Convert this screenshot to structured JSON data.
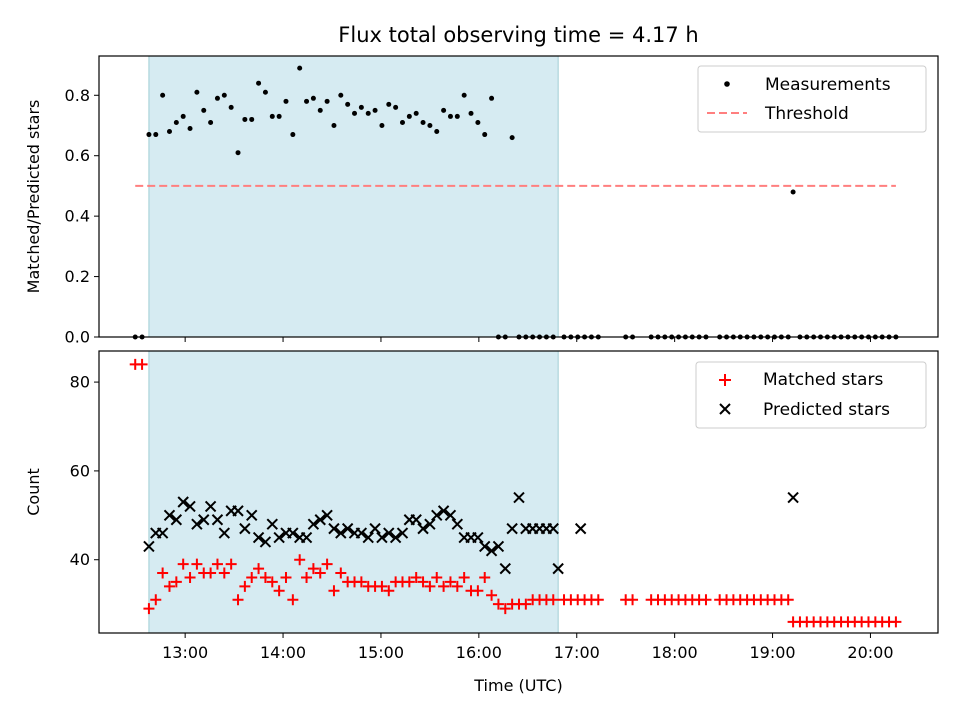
{
  "chart_data": {
    "title": "Flux total observing time = 4.17 h",
    "xlabel": "Time (UTC)",
    "x_ticks": [
      "13:00",
      "14:00",
      "15:00",
      "16:00",
      "17:00",
      "18:00",
      "19:00",
      "20:00"
    ],
    "x_tick_hours": [
      13,
      14,
      15,
      16,
      17,
      18,
      19,
      20
    ],
    "xlim": [
      "12:07",
      "20:41"
    ],
    "xlim_hours": [
      12.12,
      20.69
    ],
    "shaded_span_hours": [
      12.63,
      16.81
    ],
    "shade_color": "#add8e6",
    "panels": [
      {
        "type": "scatter",
        "ylabel": "Matched/Predicted stars",
        "ylim": [
          0,
          0.93
        ],
        "y_ticks": [
          0.0,
          0.2,
          0.4,
          0.6,
          0.8
        ],
        "y_tick_labels": [
          "0.0",
          "0.2",
          "0.4",
          "0.6",
          "0.8"
        ],
        "legend_position": "top-right",
        "series": [
          {
            "name": "Measurements",
            "marker": "dot",
            "color": "#000000",
            "x": [
              12.49,
              12.56,
              12.63,
              12.7,
              12.77,
              12.84,
              12.91,
              12.98,
              13.05,
              13.12,
              13.19,
              13.26,
              13.33,
              13.4,
              13.47,
              13.54,
              13.61,
              13.68,
              13.75,
              13.82,
              13.89,
              13.96,
              14.03,
              14.1,
              14.17,
              14.24,
              14.31,
              14.38,
              14.45,
              14.52,
              14.59,
              14.66,
              14.73,
              14.8,
              14.87,
              14.94,
              15.01,
              15.08,
              15.15,
              15.22,
              15.29,
              15.36,
              15.43,
              15.5,
              15.57,
              15.64,
              15.71,
              15.78,
              15.85,
              15.92,
              15.99,
              16.06,
              16.13,
              16.2,
              16.27,
              16.34,
              16.41,
              16.48,
              16.55,
              16.62,
              16.69,
              16.76,
              16.87,
              16.94,
              17.01,
              17.08,
              17.15,
              17.22,
              17.5,
              17.57,
              17.76,
              17.83,
              17.9,
              17.97,
              18.04,
              18.11,
              18.18,
              18.25,
              18.32,
              18.46,
              18.53,
              18.6,
              18.67,
              18.74,
              18.81,
              18.88,
              18.95,
              19.02,
              19.09,
              19.16,
              19.21,
              19.28,
              19.35,
              19.42,
              19.49,
              19.56,
              19.63,
              19.7,
              19.77,
              19.84,
              19.91,
              19.98,
              20.05,
              20.12,
              20.19,
              20.26
            ],
            "y": [
              0.0,
              0.0,
              0.67,
              0.67,
              0.8,
              0.68,
              0.71,
              0.73,
              0.69,
              0.81,
              0.75,
              0.71,
              0.79,
              0.8,
              0.76,
              0.61,
              0.72,
              0.72,
              0.84,
              0.81,
              0.73,
              0.73,
              0.78,
              0.67,
              0.89,
              0.78,
              0.79,
              0.75,
              0.78,
              0.7,
              0.8,
              0.77,
              0.74,
              0.76,
              0.74,
              0.75,
              0.7,
              0.77,
              0.76,
              0.71,
              0.73,
              0.74,
              0.71,
              0.7,
              0.68,
              0.75,
              0.73,
              0.73,
              0.8,
              0.74,
              0.71,
              0.67,
              0.79,
              0.0,
              0.0,
              0.66,
              0.0,
              0.0,
              0.0,
              0.0,
              0.0,
              0.0,
              0.0,
              0.0,
              0.0,
              0.0,
              0.0,
              0.0,
              0.0,
              0.0,
              0.0,
              0.0,
              0.0,
              0.0,
              0.0,
              0.0,
              0.0,
              0.0,
              0.0,
              0.0,
              0.0,
              0.0,
              0.0,
              0.0,
              0.0,
              0.0,
              0.0,
              0.0,
              0.0,
              0.0,
              0.48,
              0.0,
              0.0,
              0.0,
              0.0,
              0.0,
              0.0,
              0.0,
              0.0,
              0.0,
              0.0,
              0.0,
              0.0,
              0.0,
              0.0,
              0.0
            ]
          },
          {
            "name": "Threshold",
            "marker": "dashed-line",
            "color": "#ff7f7f",
            "x": [
              12.49,
              20.26
            ],
            "y": [
              0.5,
              0.5
            ]
          }
        ]
      },
      {
        "type": "scatter",
        "ylabel": "Count",
        "ylim": [
          23.5,
          87
        ],
        "y_ticks": [
          40,
          60,
          80
        ],
        "y_tick_labels": [
          "40",
          "60",
          "80"
        ],
        "legend_position": "top-right",
        "series": [
          {
            "name": "Matched stars",
            "marker": "plus",
            "color": "#ff0000",
            "x": [
              12.49,
              12.56,
              12.63,
              12.7,
              12.77,
              12.84,
              12.91,
              12.98,
              13.05,
              13.12,
              13.19,
              13.26,
              13.33,
              13.4,
              13.47,
              13.54,
              13.61,
              13.68,
              13.75,
              13.82,
              13.89,
              13.96,
              14.03,
              14.1,
              14.17,
              14.24,
              14.31,
              14.38,
              14.45,
              14.52,
              14.59,
              14.66,
              14.73,
              14.8,
              14.87,
              14.94,
              15.01,
              15.08,
              15.15,
              15.22,
              15.29,
              15.36,
              15.43,
              15.5,
              15.57,
              15.64,
              15.71,
              15.78,
              15.85,
              15.92,
              15.99,
              16.06,
              16.13,
              16.2,
              16.27,
              16.34,
              16.41,
              16.48,
              16.55,
              16.62,
              16.69,
              16.76,
              16.87,
              16.94,
              17.01,
              17.08,
              17.15,
              17.22,
              17.5,
              17.57,
              17.76,
              17.83,
              17.9,
              17.97,
              18.04,
              18.11,
              18.18,
              18.25,
              18.32,
              18.46,
              18.53,
              18.6,
              18.67,
              18.74,
              18.81,
              18.88,
              18.95,
              19.02,
              19.09,
              19.16,
              19.21,
              19.28,
              19.35,
              19.42,
              19.49,
              19.56,
              19.63,
              19.7,
              19.77,
              19.84,
              19.91,
              19.98,
              20.05,
              20.12,
              20.19,
              20.26
            ],
            "y": [
              84,
              84,
              29,
              31,
              37,
              34,
              35,
              39,
              36,
              39,
              37,
              37,
              39,
              37,
              39,
              31,
              34,
              36,
              38,
              36,
              35,
              33,
              36,
              31,
              40,
              36,
              38,
              37,
              39,
              33,
              37,
              35,
              35,
              35,
              34,
              34,
              34,
              33,
              35,
              35,
              35,
              36,
              35,
              34,
              36,
              34,
              35,
              34,
              36,
              33,
              33,
              36,
              32,
              30,
              29,
              30,
              30,
              30,
              31,
              31,
              31,
              31,
              31,
              31,
              31,
              31,
              31,
              31,
              31,
              31,
              31,
              31,
              31,
              31,
              31,
              31,
              31,
              31,
              31,
              31,
              31,
              31,
              31,
              31,
              31,
              31,
              31,
              31,
              31,
              31,
              26,
              26,
              26,
              26,
              26,
              26,
              26,
              26,
              26,
              26,
              26,
              26,
              26,
              26,
              26,
              26
            ]
          },
          {
            "name": "Predicted stars",
            "marker": "x",
            "color": "#000000",
            "x": [
              12.63,
              12.7,
              12.77,
              12.84,
              12.91,
              12.98,
              13.05,
              13.12,
              13.19,
              13.26,
              13.33,
              13.4,
              13.47,
              13.54,
              13.61,
              13.68,
              13.75,
              13.82,
              13.89,
              13.96,
              14.03,
              14.1,
              14.17,
              14.24,
              14.31,
              14.38,
              14.45,
              14.52,
              14.59,
              14.66,
              14.73,
              14.8,
              14.87,
              14.94,
              15.01,
              15.08,
              15.15,
              15.22,
              15.29,
              15.36,
              15.43,
              15.5,
              15.57,
              15.64,
              15.71,
              15.78,
              15.85,
              15.92,
              15.99,
              16.06,
              16.13,
              16.2,
              16.27,
              16.34,
              16.41,
              16.48,
              16.55,
              16.62,
              16.69,
              16.76,
              16.81,
              17.04,
              19.21
            ],
            "y": [
              43,
              46,
              46,
              50,
              49,
              53,
              52,
              48,
              49,
              52,
              49,
              46,
              51,
              51,
              47,
              50,
              45,
              44,
              48,
              45,
              46,
              46,
              45,
              45,
              48,
              49,
              50,
              47,
              46,
              47,
              46,
              46,
              45,
              47,
              45,
              46,
              45,
              46,
              49,
              49,
              47,
              48,
              50,
              51,
              50,
              48,
              45,
              45,
              45,
              43,
              42,
              43,
              38,
              47,
              54,
              47,
              47,
              47,
              47,
              47,
              38,
              47,
              54
            ]
          }
        ]
      }
    ]
  }
}
